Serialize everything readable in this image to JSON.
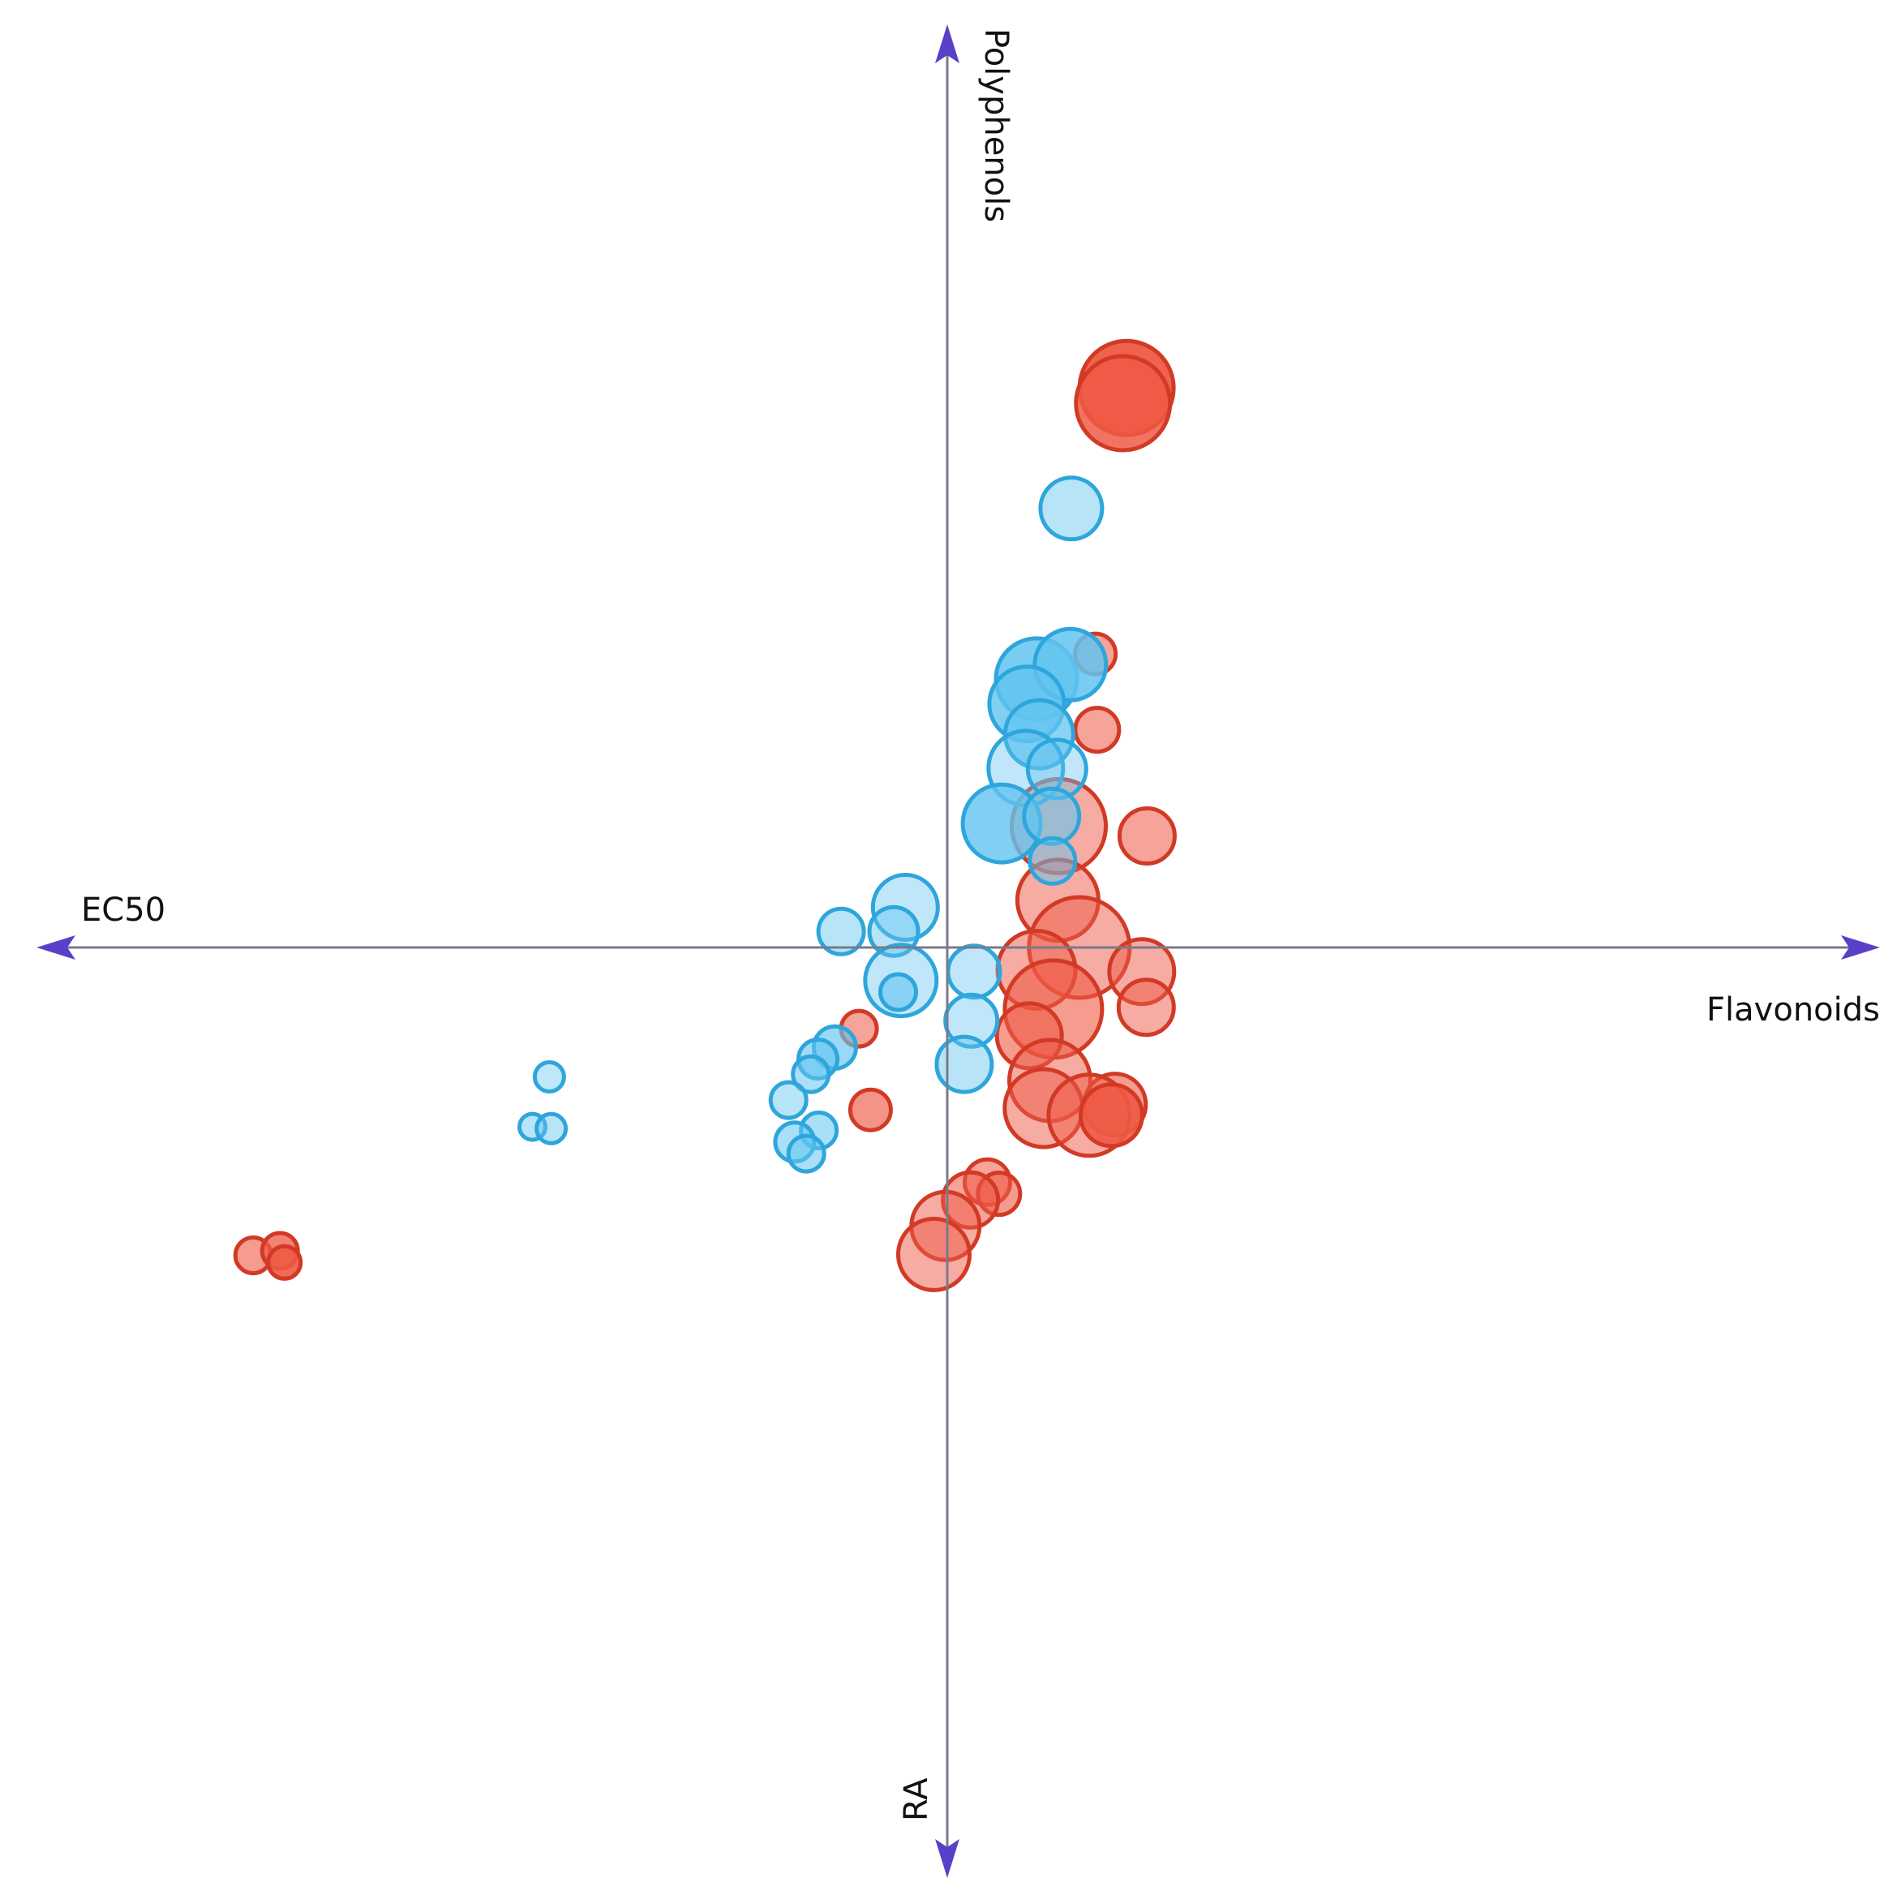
{
  "chart_data": {
    "type": "scatter",
    "title": "",
    "axes": {
      "right_label": "Flavonoids",
      "left_label": "EC50",
      "top_label": "Polyphenols",
      "bottom_label": "RA"
    },
    "xlim": [
      -1,
      1
    ],
    "ylim": [
      -1,
      1
    ],
    "grid": false,
    "legend": "none",
    "colors": {
      "red_fill": "#ee5a45",
      "red_stroke": "#d23a26",
      "blue_fill": "#62c4f0",
      "blue_stroke": "#2ea6dc",
      "axis": "#7a7a8c",
      "arrow": "#5a3fc8"
    },
    "series": [
      {
        "color": "red",
        "points": [
          {
            "x": 0.201,
            "y": 0.627,
            "r": 58,
            "o": 0.95
          },
          {
            "x": 0.197,
            "y": 0.61,
            "r": 58,
            "o": 0.85
          },
          {
            "x": 0.166,
            "y": 0.329,
            "r": 25,
            "o": 0.55
          },
          {
            "x": 0.168,
            "y": 0.244,
            "r": 27,
            "o": 0.55
          },
          {
            "x": 0.224,
            "y": 0.125,
            "r": 34,
            "o": 0.55
          },
          {
            "x": 0.125,
            "y": 0.136,
            "r": 58,
            "o": 0.5
          },
          {
            "x": 0.124,
            "y": 0.053,
            "r": 50,
            "o": 0.5
          },
          {
            "x": 0.148,
            "y": 0.0,
            "r": 62,
            "o": 0.5
          },
          {
            "x": 0.1,
            "y": -0.025,
            "r": 48,
            "o": 0.5
          },
          {
            "x": 0.218,
            "y": -0.027,
            "r": 40,
            "o": 0.5
          },
          {
            "x": 0.223,
            "y": -0.067,
            "r": 34,
            "o": 0.5
          },
          {
            "x": 0.119,
            "y": -0.069,
            "r": 60,
            "o": 0.6
          },
          {
            "x": 0.092,
            "y": -0.099,
            "r": 40,
            "o": 0.6
          },
          {
            "x": 0.115,
            "y": -0.149,
            "r": 50,
            "o": 0.5
          },
          {
            "x": 0.108,
            "y": -0.18,
            "r": 48,
            "o": 0.5
          },
          {
            "x": 0.188,
            "y": -0.176,
            "r": 38,
            "o": 0.6
          },
          {
            "x": 0.159,
            "y": -0.188,
            "r": 50,
            "o": 0.5
          },
          {
            "x": 0.184,
            "y": -0.188,
            "r": 38,
            "o": 0.9
          },
          {
            "x": -0.086,
            "y": -0.182,
            "r": 25,
            "o": 0.65
          },
          {
            "x": -0.099,
            "y": -0.091,
            "r": 22,
            "o": 0.55
          },
          {
            "x": 0.045,
            "y": -0.263,
            "r": 28,
            "o": 0.55
          },
          {
            "x": 0.058,
            "y": -0.276,
            "r": 26,
            "o": 0.6
          },
          {
            "x": 0.026,
            "y": -0.283,
            "r": 34,
            "o": 0.55
          },
          {
            "x": -0.002,
            "y": -0.312,
            "r": 42,
            "o": 0.5
          },
          {
            "x": -0.015,
            "y": -0.344,
            "r": 44,
            "o": 0.5
          },
          {
            "x": -0.778,
            "y": -0.345,
            "r": 22,
            "o": 0.6
          },
          {
            "x": -0.748,
            "y": -0.34,
            "r": 22,
            "o": 0.75
          },
          {
            "x": -0.743,
            "y": -0.353,
            "r": 20,
            "o": 0.9
          }
        ]
      },
      {
        "color": "blue",
        "points": [
          {
            "x": 0.139,
            "y": 0.492,
            "r": 38,
            "o": 0.45
          },
          {
            "x": 0.1,
            "y": 0.301,
            "r": 50,
            "o": 0.85
          },
          {
            "x": 0.138,
            "y": 0.317,
            "r": 44,
            "o": 0.85
          },
          {
            "x": 0.089,
            "y": 0.273,
            "r": 46,
            "o": 0.8
          },
          {
            "x": 0.103,
            "y": 0.239,
            "r": 42,
            "o": 0.75
          },
          {
            "x": 0.088,
            "y": 0.201,
            "r": 46,
            "o": 0.4
          },
          {
            "x": 0.123,
            "y": 0.2,
            "r": 36,
            "o": 0.4
          },
          {
            "x": 0.061,
            "y": 0.139,
            "r": 48,
            "o": 0.8
          },
          {
            "x": 0.117,
            "y": 0.147,
            "r": 34,
            "o": 0.6
          },
          {
            "x": 0.118,
            "y": 0.097,
            "r": 28,
            "o": 0.5
          },
          {
            "x": -0.047,
            "y": 0.045,
            "r": 40,
            "o": 0.4
          },
          {
            "x": -0.119,
            "y": 0.018,
            "r": 28,
            "o": 0.45
          },
          {
            "x": -0.06,
            "y": 0.018,
            "r": 30,
            "o": 0.45
          },
          {
            "x": -0.052,
            "y": -0.037,
            "r": 44,
            "o": 0.4
          },
          {
            "x": -0.055,
            "y": -0.05,
            "r": 22,
            "o": 0.6
          },
          {
            "x": 0.03,
            "y": -0.027,
            "r": 32,
            "o": 0.4
          },
          {
            "x": 0.027,
            "y": -0.082,
            "r": 32,
            "o": 0.4
          },
          {
            "x": 0.019,
            "y": -0.131,
            "r": 34,
            "o": 0.45
          },
          {
            "x": -0.126,
            "y": -0.112,
            "r": 26,
            "o": 0.65
          },
          {
            "x": -0.145,
            "y": -0.125,
            "r": 24,
            "o": 0.6
          },
          {
            "x": -0.153,
            "y": -0.142,
            "r": 22,
            "o": 0.55
          },
          {
            "x": -0.178,
            "y": -0.171,
            "r": 22,
            "o": 0.45
          },
          {
            "x": -0.144,
            "y": -0.205,
            "r": 22,
            "o": 0.55
          },
          {
            "x": -0.171,
            "y": -0.218,
            "r": 24,
            "o": 0.55
          },
          {
            "x": -0.158,
            "y": -0.231,
            "r": 22,
            "o": 0.55
          },
          {
            "x": -0.446,
            "y": -0.145,
            "r": 18,
            "o": 0.4
          },
          {
            "x": -0.465,
            "y": -0.201,
            "r": 16,
            "o": 0.45
          },
          {
            "x": -0.444,
            "y": -0.203,
            "r": 18,
            "o": 0.45
          }
        ]
      }
    ]
  }
}
